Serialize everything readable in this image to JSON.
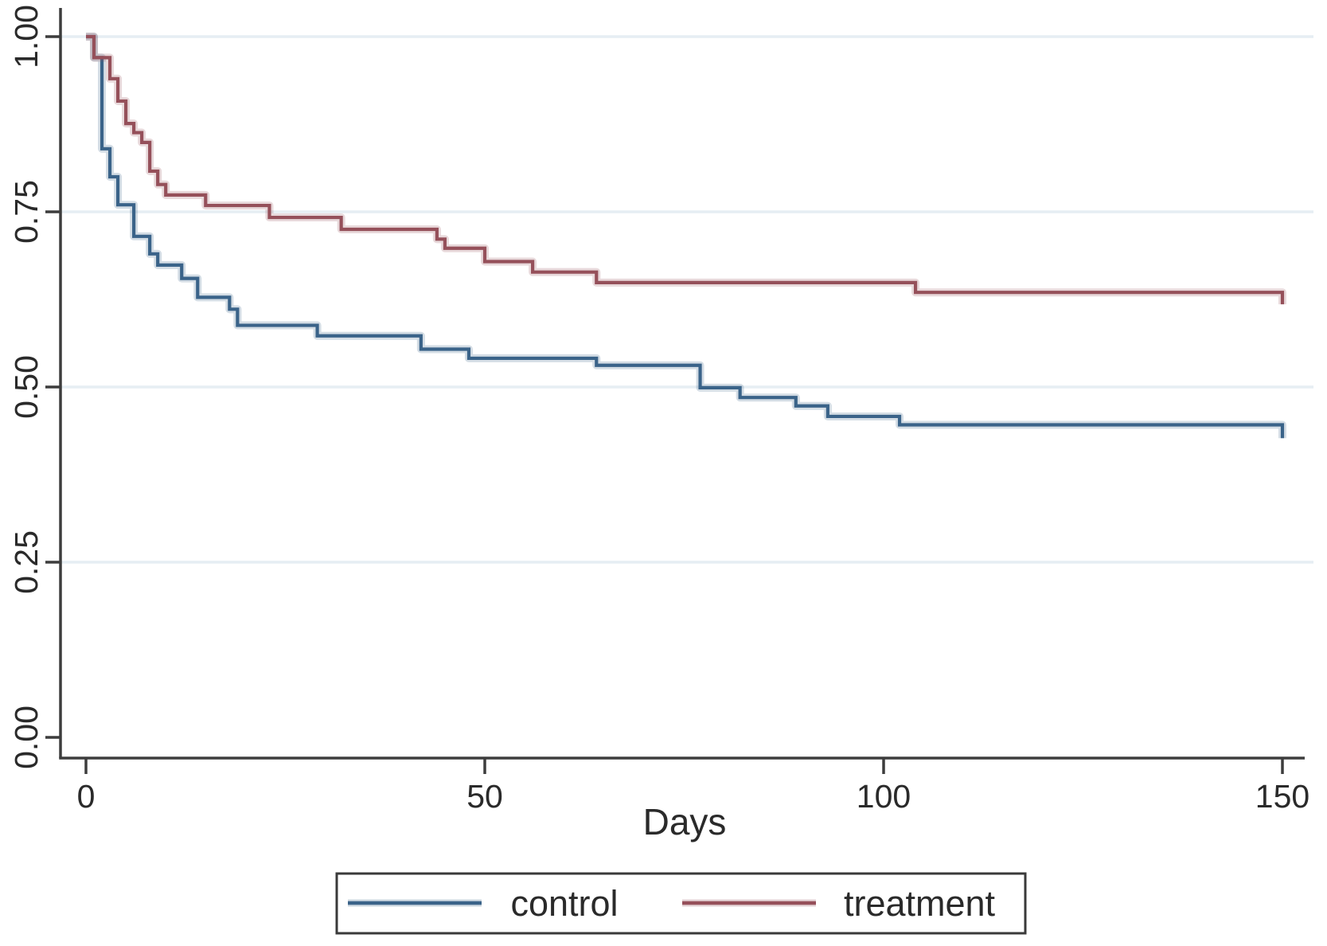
{
  "figure": {
    "background": "#ffffff"
  },
  "colors": {
    "axis": "#3d3d3d",
    "tick_text": "#2a2a2a",
    "grid": "#e6eef3",
    "legend_border": "#3a3a3a",
    "legend_background": "#ffffff",
    "control": "#3a6389",
    "treatment": "#95505a"
  },
  "chart_data": {
    "type": "line",
    "subtype": "kaplan-meier-step",
    "title": "",
    "xlabel": "Days",
    "ylabel": "",
    "xlim": [
      0,
      150
    ],
    "ylim": [
      0.0,
      1.0
    ],
    "grid": "horizontal-gridlines-at-y-ticks",
    "legend_position": "bottom-outside-boxed",
    "x_ticks": [
      {
        "value": 0,
        "label": "0"
      },
      {
        "value": 50,
        "label": "50"
      },
      {
        "value": 100,
        "label": "100"
      },
      {
        "value": 150,
        "label": "150"
      }
    ],
    "y_ticks": [
      {
        "value": 1.0,
        "label": "1.00"
      },
      {
        "value": 0.75,
        "label": "0.75"
      },
      {
        "value": 0.5,
        "label": "0.50"
      },
      {
        "value": 0.25,
        "label": "0.25"
      },
      {
        "value": 0.0,
        "label": "0.00"
      }
    ],
    "series": [
      {
        "name": "control",
        "color": "#3a6389",
        "points": [
          [
            0,
            1.0
          ],
          [
            1,
            0.97
          ],
          [
            2,
            0.84
          ],
          [
            3,
            0.8
          ],
          [
            4,
            0.76
          ],
          [
            6,
            0.715
          ],
          [
            8,
            0.69
          ],
          [
            9,
            0.674
          ],
          [
            12,
            0.655
          ],
          [
            14,
            0.628
          ],
          [
            18,
            0.611
          ],
          [
            19,
            0.588
          ],
          [
            29,
            0.573
          ],
          [
            42,
            0.554
          ],
          [
            48,
            0.541
          ],
          [
            64,
            0.531
          ],
          [
            77,
            0.499
          ],
          [
            82,
            0.485
          ],
          [
            89,
            0.473
          ],
          [
            93,
            0.458
          ],
          [
            102,
            0.446
          ],
          [
            150,
            0.427
          ]
        ]
      },
      {
        "name": "treatment",
        "color": "#95505a",
        "points": [
          [
            0,
            1.0
          ],
          [
            1,
            0.97
          ],
          [
            3,
            0.94
          ],
          [
            4,
            0.908
          ],
          [
            5,
            0.876
          ],
          [
            6,
            0.863
          ],
          [
            7,
            0.849
          ],
          [
            8,
            0.808
          ],
          [
            9,
            0.789
          ],
          [
            10,
            0.774
          ],
          [
            15,
            0.759
          ],
          [
            23,
            0.742
          ],
          [
            32,
            0.725
          ],
          [
            44,
            0.711
          ],
          [
            45,
            0.698
          ],
          [
            50,
            0.679
          ],
          [
            56,
            0.664
          ],
          [
            64,
            0.649
          ],
          [
            104,
            0.635
          ],
          [
            150,
            0.618
          ]
        ]
      }
    ]
  },
  "legend": {
    "items": [
      {
        "label": "control",
        "color": "#3a6389"
      },
      {
        "label": "treatment",
        "color": "#95505a"
      }
    ]
  }
}
